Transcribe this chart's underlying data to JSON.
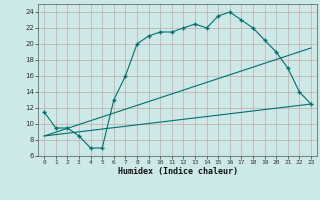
{
  "xlabel": "Humidex (Indice chaleur)",
  "bg_color": "#cce9e8",
  "line_color": "#007070",
  "grid_color": "#b8d8d8",
  "xlim": [
    -0.5,
    23.5
  ],
  "ylim": [
    6,
    25
  ],
  "xticks": [
    0,
    1,
    2,
    3,
    4,
    5,
    6,
    7,
    8,
    9,
    10,
    11,
    12,
    13,
    14,
    15,
    16,
    17,
    18,
    19,
    20,
    21,
    22,
    23
  ],
  "yticks": [
    6,
    8,
    10,
    12,
    14,
    16,
    18,
    20,
    22,
    24
  ],
  "humidex_x": [
    0,
    1,
    2,
    3,
    4,
    5,
    6,
    7,
    8,
    9,
    10,
    11,
    12,
    13,
    14,
    15,
    16,
    17,
    18,
    19,
    20,
    21,
    22,
    23
  ],
  "humidex_y": [
    11.5,
    9.5,
    9.5,
    8.5,
    7.0,
    7.0,
    13.0,
    16.0,
    20.0,
    21.0,
    21.5,
    21.5,
    22.0,
    22.5,
    22.0,
    23.5,
    24.0,
    23.0,
    22.0,
    20.5,
    19.0,
    17.0,
    14.0,
    12.5
  ],
  "line2_x": [
    0,
    23
  ],
  "line2_y": [
    8.5,
    12.5
  ],
  "line3_x": [
    0,
    23
  ],
  "line3_y": [
    8.5,
    19.5
  ]
}
